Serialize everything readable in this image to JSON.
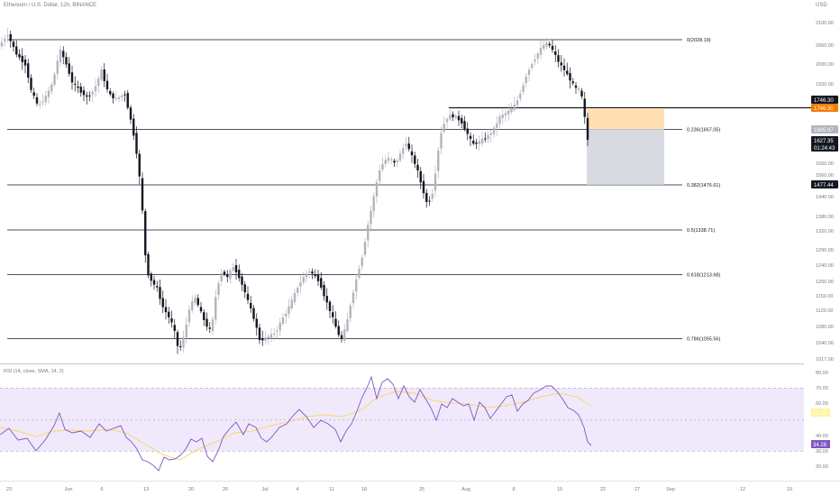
{
  "header": {
    "title": "Ethereum / U.S. Dollar, 12h, BINANCE",
    "currency": "USD"
  },
  "price_axis": {
    "ticks": [
      "2100.00",
      "2060.00",
      "2000.00",
      "1920.00",
      "1840.00",
      "1760.00",
      "1700.00",
      "1660.00",
      "1560.00",
      "1520.00",
      "1440.00",
      "1380.00",
      "1320.00",
      "1290.00",
      "1240.00",
      "1200.00",
      "1150.00",
      "1120.00",
      "1080.00",
      "1040.00",
      "1017.00"
    ]
  },
  "price_tags": [
    {
      "label": "1746.30",
      "bg": "#131722"
    },
    {
      "label": "1746.30",
      "bg": "#f57c00"
    },
    {
      "label": "1685.97",
      "bg": "#b2b5be"
    },
    {
      "label": "1627.35",
      "bg": "#131722"
    },
    {
      "label": "01:24:43",
      "bg": "#131722"
    },
    {
      "label": "1477.44",
      "bg": "#131722"
    }
  ],
  "fib_levels": [
    {
      "label": "0(2028.19)"
    },
    {
      "label": "0.236(1667.05)"
    },
    {
      "label": "0.382(1476.61)"
    },
    {
      "label": "0.5(1338.71)"
    },
    {
      "label": "0.618(1213.68)"
    },
    {
      "label": "0.786(1055.56)"
    }
  ],
  "rsi": {
    "title": "RSI (14, close, SMA, 14, 2)",
    "axis_ticks": [
      "80.00",
      "70.00",
      "60.00",
      "40.00",
      "30.00",
      "20.00"
    ],
    "rsi_value": "34.28",
    "ma_value": "54.30",
    "rsi_color": "#7e57c2",
    "ma_color": "#f7d774"
  },
  "time_axis": {
    "labels": [
      "23",
      "Jun",
      "6",
      "13",
      "20",
      "26",
      "Jul",
      "4",
      "11",
      "18",
      "25",
      "Aug",
      "8",
      "15",
      "22",
      "27",
      "Sep",
      "12",
      "19"
    ]
  },
  "colors": {
    "up": "#b2b5be",
    "down": "#131722",
    "target_zone": "#ffe0b2",
    "stop_zone": "#d1d4dc",
    "rsi_band": "#efe9fb"
  }
}
